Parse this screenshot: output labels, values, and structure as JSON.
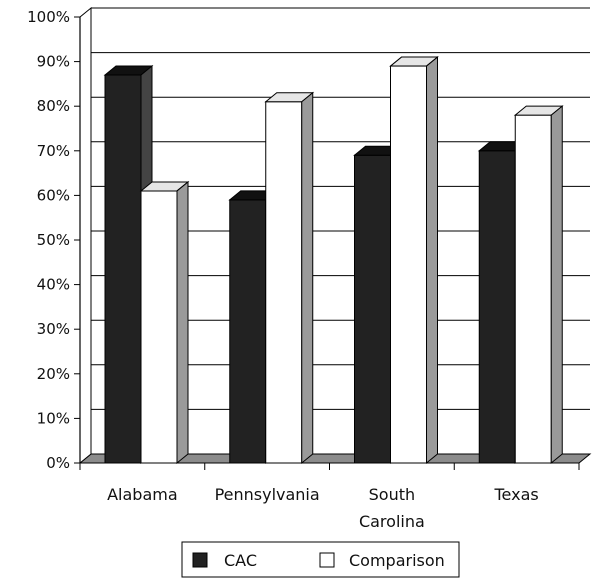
{
  "chart_data": {
    "type": "bar",
    "style": "3d-clustered-column",
    "categories": [
      "Alabama",
      "Pennsylvania",
      "South Carolina",
      "Texas"
    ],
    "category_lines": [
      [
        "Alabama"
      ],
      [
        "Pennsylvania"
      ],
      [
        "South",
        "Carolina"
      ],
      [
        "Texas"
      ]
    ],
    "series": [
      {
        "name": "CAC",
        "values": [
          87,
          59,
          69,
          70
        ],
        "color": "#222222"
      },
      {
        "name": "Comparison",
        "values": [
          61,
          81,
          89,
          78
        ],
        "color": "#ffffff"
      }
    ],
    "y_ticks": [
      "0%",
      "10%",
      "20%",
      "30%",
      "40%",
      "50%",
      "60%",
      "70%",
      "80%",
      "90%",
      "100%"
    ],
    "ylim": [
      0,
      100
    ],
    "title": "",
    "xlabel": "",
    "ylabel": "",
    "grid": true,
    "legend": {
      "position": "bottom",
      "items": [
        {
          "label": "CAC",
          "swatch": "filled"
        },
        {
          "label": "Comparison",
          "swatch": "hollow"
        }
      ]
    }
  }
}
